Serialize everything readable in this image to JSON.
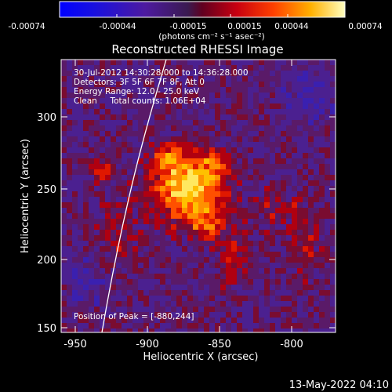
{
  "colorbar": {
    "tick_labels": [
      "-0.00074",
      "-0.00044",
      "-0.00015",
      "0.00015",
      "0.00044",
      "0.00074"
    ],
    "units_label": "(photons cm⁻² s⁻¹ asec⁻²)"
  },
  "plot": {
    "title": "Reconstructed RHESSI Image",
    "xlabel": "Heliocentric X (arcsec)",
    "ylabel": "Heliocentric Y (arcsec)",
    "x_ticks": [
      "-950",
      "-900",
      "-850",
      "-800"
    ],
    "y_ticks": [
      "150",
      "200",
      "250",
      "300"
    ],
    "info_lines": [
      "30-Jul-2012 14:30:28.000 to 14:36:28.000",
      "Detectors: 3F 5F 6F 7F 8F, Att 0",
      "Energy Range: 12.0 - 25.0 keV",
      "Clean     Total counts: 1.06E+04"
    ],
    "peak_label": "Position of Peak = [-880,244]"
  },
  "footer": {
    "date_stamp": "13-May-2022 04:10"
  },
  "colors": {
    "background": "#000000",
    "text": "#ffffff"
  }
}
